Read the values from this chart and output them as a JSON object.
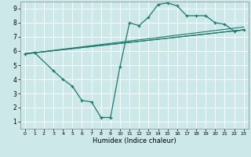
{
  "xlabel": "Humidex (Indice chaleur)",
  "background_color": "#cce8e8",
  "grid_color": "#ffffff",
  "line_color": "#1a7a6e",
  "xlim": [
    -0.5,
    23.5
  ],
  "ylim": [
    0.5,
    9.5
  ],
  "xticks": [
    0,
    1,
    2,
    3,
    4,
    5,
    6,
    7,
    8,
    9,
    10,
    11,
    12,
    13,
    14,
    15,
    16,
    17,
    18,
    19,
    20,
    21,
    22,
    23
  ],
  "yticks": [
    1,
    2,
    3,
    4,
    5,
    6,
    7,
    8,
    9
  ],
  "line1_x": [
    0,
    1,
    3,
    4,
    5,
    6,
    7,
    8,
    9,
    10,
    11,
    12,
    13,
    14,
    15,
    16,
    17,
    18,
    19,
    20,
    21,
    22,
    23
  ],
  "line1_y": [
    5.8,
    5.9,
    4.6,
    4.0,
    3.5,
    2.5,
    2.4,
    1.3,
    1.3,
    4.9,
    8.0,
    7.8,
    8.4,
    9.3,
    9.4,
    9.2,
    8.5,
    8.5,
    8.5,
    8.0,
    7.9,
    7.4,
    7.5
  ],
  "line2_x": [
    0,
    23
  ],
  "line2_y": [
    5.8,
    7.5
  ],
  "line3_x": [
    0,
    23
  ],
  "line3_y": [
    5.8,
    7.7
  ],
  "line4_x": [
    0,
    23
  ],
  "line4_y": [
    5.8,
    7.5
  ]
}
